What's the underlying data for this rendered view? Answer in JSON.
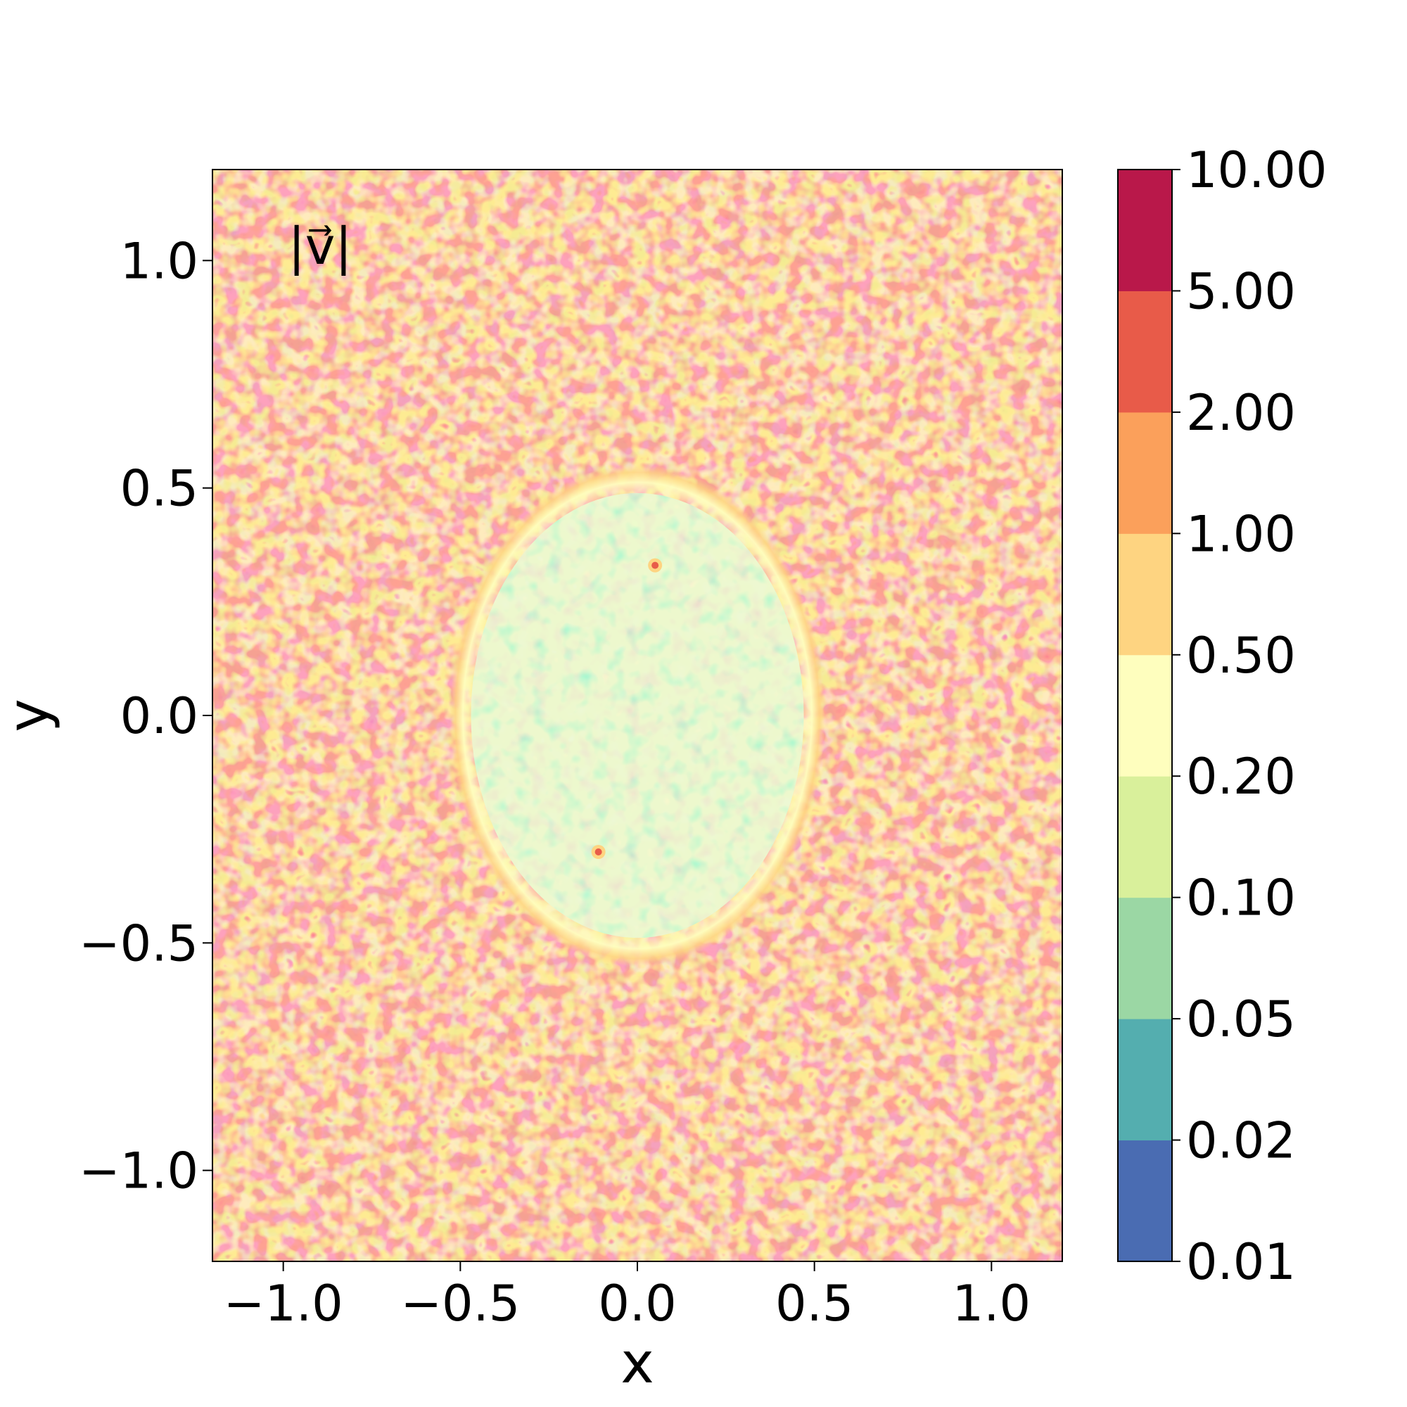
{
  "chart_data": {
    "type": "heatmap",
    "title": "",
    "xlabel": "x",
    "ylabel": "y",
    "annotation": "|v⃗|",
    "xlim": [
      -1.2,
      1.2
    ],
    "ylim": [
      -1.2,
      1.2
    ],
    "x_ticks": [
      -1.0,
      -0.5,
      0.0,
      0.5,
      1.0
    ],
    "x_tick_labels": [
      "−1.0",
      "−0.5",
      "0.0",
      "0.5",
      "1.0"
    ],
    "y_ticks": [
      -1.0,
      -0.5,
      0.0,
      0.5,
      1.0
    ],
    "y_tick_labels": [
      "−1.0",
      "−0.5",
      "0.0",
      "0.5",
      "1.0"
    ],
    "grid": false,
    "colormap": "Spectral_r",
    "colorbar": {
      "position": "right",
      "scale": "discrete",
      "levels": [
        0.01,
        0.02,
        0.05,
        0.1,
        0.2,
        0.5,
        1.0,
        2.0,
        5.0,
        10.0
      ],
      "level_labels": [
        "0.01",
        "0.02",
        "0.05",
        "0.10",
        "0.20",
        "0.50",
        "1.00",
        "2.00",
        "5.00",
        "10.00"
      ],
      "colors": [
        "#4a6cb2",
        "#54aeaf",
        "#9bd7a4",
        "#d9f09b",
        "#fefebe",
        "#fed481",
        "#fba05b",
        "#e85b49",
        "#b9184a"
      ]
    },
    "regions": [
      {
        "name": "outer",
        "range": [
          0.5,
          10.0
        ],
        "typical": 2.0
      },
      {
        "name": "inner-ellipse",
        "center": [
          0.0,
          0.0
        ],
        "semi_axes": [
          0.5,
          0.52
        ],
        "range": [
          0.02,
          0.5
        ],
        "typical": 0.08
      }
    ],
    "point_features": [
      {
        "x": 0.05,
        "y": 0.33
      },
      {
        "x": -0.11,
        "y": -0.3
      }
    ]
  }
}
